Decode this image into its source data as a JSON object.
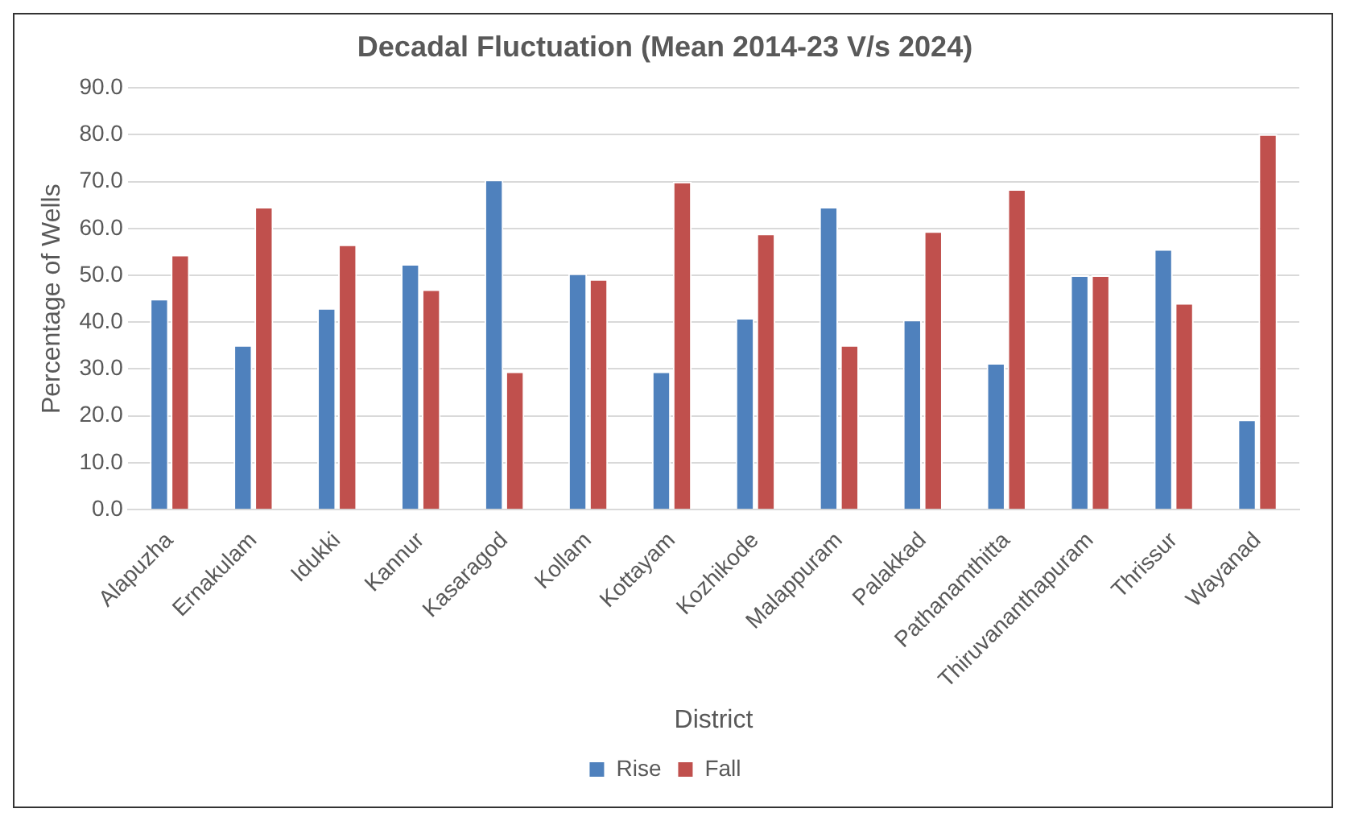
{
  "chart_data": {
    "type": "bar",
    "title": "Decadal Fluctuation (Mean 2014-23 V/s 2024)",
    "xlabel": "District",
    "ylabel": "Percentage of Wells",
    "categories": [
      "Alapuzha",
      "Ernakulam",
      "Idukki",
      "Kannur",
      "Kasaragod",
      "Kollam",
      "Kottayam",
      "Kozhikode",
      "Malappuram",
      "Palakkad",
      "Pathanamthitta",
      "Thiruvananthapuram",
      "Thrissur",
      "Wayanad"
    ],
    "series": [
      {
        "name": "Rise",
        "color": "#4f81bd",
        "values": [
          45.0,
          35.1,
          43.0,
          52.4,
          70.4,
          50.4,
          29.5,
          40.9,
          64.6,
          40.5,
          31.3,
          50.0,
          55.6,
          19.2
        ]
      },
      {
        "name": "Fall",
        "color": "#c0504d",
        "values": [
          54.4,
          64.6,
          56.6,
          47.0,
          29.5,
          49.2,
          70.0,
          58.9,
          35.1,
          59.4,
          68.4,
          50.0,
          44.1,
          80.1
        ]
      }
    ],
    "ylim": [
      0,
      90
    ],
    "yticks": [
      {
        "value": 0,
        "label": "0.0"
      },
      {
        "value": 10,
        "label": "10.0"
      },
      {
        "value": 20,
        "label": "20.0"
      },
      {
        "value": 30,
        "label": "30.0"
      },
      {
        "value": 40,
        "label": "40.0"
      },
      {
        "value": 50,
        "label": "50.0"
      },
      {
        "value": 60,
        "label": "60.0"
      },
      {
        "value": 70,
        "label": "70.0"
      },
      {
        "value": 80,
        "label": "80.0"
      },
      {
        "value": 90,
        "label": "90.0"
      }
    ],
    "grid": "y",
    "legend": "bottom"
  }
}
